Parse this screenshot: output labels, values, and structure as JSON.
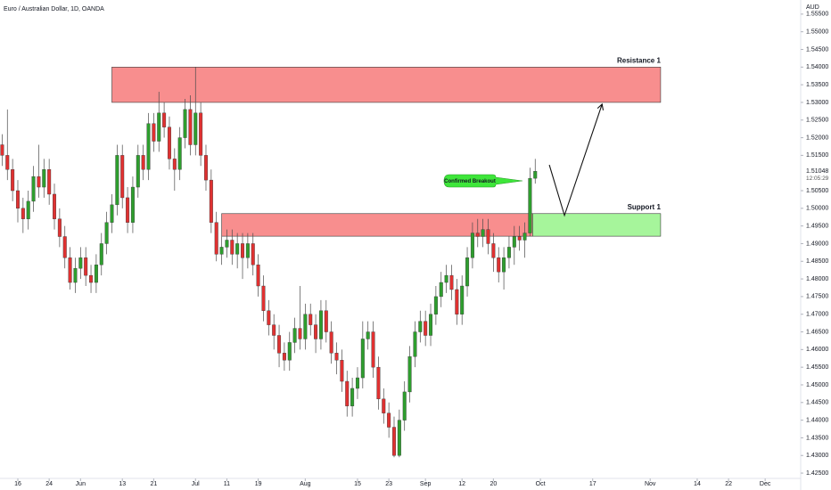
{
  "chart_data": {
    "type": "candlestick",
    "title": "Euro / Australian Dollar, 1D, OANDA",
    "currency": "AUD",
    "up_color": "#2e9e2e",
    "down_color": "#e03131",
    "xlim": [
      -0.41,
      152.8
    ],
    "ylim": [
      1.4235,
      1.559
    ],
    "yticks": [
      {
        "value": 1.425,
        "label": "1.42500"
      },
      {
        "value": 1.43,
        "label": "1.43000"
      },
      {
        "value": 1.435,
        "label": "1.43500"
      },
      {
        "value": 1.44,
        "label": "1.44000"
      },
      {
        "value": 1.445,
        "label": "1.44500"
      },
      {
        "value": 1.45,
        "label": "1.45000"
      },
      {
        "value": 1.455,
        "label": "1.45500"
      },
      {
        "value": 1.46,
        "label": "1.46000"
      },
      {
        "value": 1.465,
        "label": "1.46500"
      },
      {
        "value": 1.47,
        "label": "1.47000"
      },
      {
        "value": 1.475,
        "label": "1.47500"
      },
      {
        "value": 1.48,
        "label": "1.48000"
      },
      {
        "value": 1.485,
        "label": "1.48500"
      },
      {
        "value": 1.49,
        "label": "1.49000"
      },
      {
        "value": 1.495,
        "label": "1.49500"
      },
      {
        "value": 1.5,
        "label": "1.50000"
      },
      {
        "value": 1.505,
        "label": "1.50500"
      },
      {
        "value": 1.515,
        "label": "1.51500"
      },
      {
        "value": 1.52,
        "label": "1.52000"
      },
      {
        "value": 1.525,
        "label": "1.52500"
      },
      {
        "value": 1.53,
        "label": "1.53000"
      },
      {
        "value": 1.535,
        "label": "1.53500"
      },
      {
        "value": 1.54,
        "label": "1.54000"
      },
      {
        "value": 1.545,
        "label": "1.54500"
      },
      {
        "value": 1.55,
        "label": "1.55000"
      },
      {
        "value": 1.555,
        "label": "1.55500"
      }
    ],
    "xticks": [
      {
        "value": 3,
        "label": "16"
      },
      {
        "value": 9,
        "label": "24"
      },
      {
        "value": 15,
        "label": "Jun"
      },
      {
        "value": 23,
        "label": "13"
      },
      {
        "value": 29,
        "label": "21"
      },
      {
        "value": 37,
        "label": "Jul"
      },
      {
        "value": 43,
        "label": "11"
      },
      {
        "value": 49,
        "label": "19"
      },
      {
        "value": 58,
        "label": "Aug"
      },
      {
        "value": 68,
        "label": "15"
      },
      {
        "value": 74,
        "label": "23"
      },
      {
        "value": 81,
        "label": "Sep"
      },
      {
        "value": 88,
        "label": "12"
      },
      {
        "value": 94,
        "label": "20"
      },
      {
        "value": 103,
        "label": "Oct"
      },
      {
        "value": 113,
        "label": "17"
      },
      {
        "value": 124,
        "label": "Nov"
      },
      {
        "value": 133,
        "label": "14"
      },
      {
        "value": 139,
        "label": "22"
      },
      {
        "value": 146,
        "label": "Dec"
      }
    ],
    "candles": [
      [
        1.518,
        1.521,
        1.512,
        1.515
      ],
      [
        1.515,
        1.528,
        1.508,
        1.511
      ],
      [
        1.511,
        1.514,
        1.502,
        1.505
      ],
      [
        1.505,
        1.508,
        1.496,
        1.5
      ],
      [
        1.5,
        1.503,
        1.493,
        1.497
      ],
      [
        1.497,
        1.505,
        1.494,
        1.502
      ],
      [
        1.502,
        1.512,
        1.499,
        1.509
      ],
      [
        1.509,
        1.518,
        1.503,
        1.506
      ],
      [
        1.506,
        1.514,
        1.503,
        1.511
      ],
      [
        1.511,
        1.514,
        1.501,
        1.504
      ],
      [
        1.504,
        1.507,
        1.494,
        1.497
      ],
      [
        1.497,
        1.5,
        1.489,
        1.492
      ],
      [
        1.492,
        1.495,
        1.483,
        1.486
      ],
      [
        1.486,
        1.489,
        1.477,
        1.479
      ],
      [
        1.479,
        1.486,
        1.476,
        1.483
      ],
      [
        1.483,
        1.489,
        1.48,
        1.486
      ],
      [
        1.486,
        1.489,
        1.478,
        1.481
      ],
      [
        1.481,
        1.484,
        1.476,
        1.479
      ],
      [
        1.479,
        1.487,
        1.476,
        1.484
      ],
      [
        1.484,
        1.493,
        1.481,
        1.49
      ],
      [
        1.49,
        1.499,
        1.487,
        1.496
      ],
      [
        1.496,
        1.504,
        1.493,
        1.501
      ],
      [
        1.501,
        1.518,
        1.498,
        1.515
      ],
      [
        1.515,
        1.518,
        1.5,
        1.503
      ],
      [
        1.503,
        1.506,
        1.493,
        1.496
      ],
      [
        1.496,
        1.509,
        1.493,
        1.506
      ],
      [
        1.506,
        1.518,
        1.503,
        1.515
      ],
      [
        1.515,
        1.518,
        1.508,
        1.511
      ],
      [
        1.511,
        1.527,
        1.508,
        1.524
      ],
      [
        1.524,
        1.527,
        1.516,
        1.519
      ],
      [
        1.519,
        1.533,
        1.516,
        1.527
      ],
      [
        1.527,
        1.53,
        1.52,
        1.523
      ],
      [
        1.523,
        1.526,
        1.511,
        1.514
      ],
      [
        1.514,
        1.517,
        1.505,
        1.511
      ],
      [
        1.511,
        1.523,
        1.508,
        1.52
      ],
      [
        1.52,
        1.531,
        1.517,
        1.528
      ],
      [
        1.528,
        1.532,
        1.515,
        1.518
      ],
      [
        1.518,
        1.54,
        1.515,
        1.527
      ],
      [
        1.527,
        1.53,
        1.512,
        1.515
      ],
      [
        1.515,
        1.518,
        1.505,
        1.508
      ],
      [
        1.508,
        1.511,
        1.493,
        1.496
      ],
      [
        1.496,
        1.499,
        1.485,
        1.487
      ],
      [
        1.487,
        1.492,
        1.484,
        1.489
      ],
      [
        1.489,
        1.494,
        1.486,
        1.491
      ],
      [
        1.491,
        1.494,
        1.484,
        1.487
      ],
      [
        1.487,
        1.493,
        1.483,
        1.49
      ],
      [
        1.49,
        1.493,
        1.48,
        1.486
      ],
      [
        1.486,
        1.493,
        1.483,
        1.49
      ],
      [
        1.49,
        1.493,
        1.481,
        1.484
      ],
      [
        1.484,
        1.487,
        1.475,
        1.478
      ],
      [
        1.478,
        1.481,
        1.468,
        1.471
      ],
      [
        1.471,
        1.474,
        1.464,
        1.467
      ],
      [
        1.467,
        1.47,
        1.46,
        1.464
      ],
      [
        1.464,
        1.467,
        1.455,
        1.459
      ],
      [
        1.459,
        1.462,
        1.454,
        1.457
      ],
      [
        1.457,
        1.465,
        1.454,
        1.462
      ],
      [
        1.462,
        1.469,
        1.459,
        1.466
      ],
      [
        1.466,
        1.478,
        1.46,
        1.463
      ],
      [
        1.463,
        1.473,
        1.46,
        1.47
      ],
      [
        1.47,
        1.473,
        1.464,
        1.467
      ],
      [
        1.467,
        1.47,
        1.459,
        1.463
      ],
      [
        1.463,
        1.474,
        1.46,
        1.471
      ],
      [
        1.471,
        1.474,
        1.462,
        1.465
      ],
      [
        1.465,
        1.468,
        1.456,
        1.459
      ],
      [
        1.459,
        1.462,
        1.453,
        1.457
      ],
      [
        1.457,
        1.46,
        1.448,
        1.451
      ],
      [
        1.451,
        1.454,
        1.441,
        1.444
      ],
      [
        1.444,
        1.452,
        1.441,
        1.449
      ],
      [
        1.449,
        1.455,
        1.446,
        1.452
      ],
      [
        1.452,
        1.468,
        1.449,
        1.463
      ],
      [
        1.463,
        1.468,
        1.46,
        1.465
      ],
      [
        1.465,
        1.468,
        1.452,
        1.455
      ],
      [
        1.455,
        1.458,
        1.443,
        1.446
      ],
      [
        1.446,
        1.449,
        1.439,
        1.442
      ],
      [
        1.442,
        1.445,
        1.435,
        1.438
      ],
      [
        1.438,
        1.441,
        1.4295,
        1.43
      ],
      [
        1.43,
        1.443,
        1.4295,
        1.44
      ],
      [
        1.44,
        1.451,
        1.437,
        1.448
      ],
      [
        1.448,
        1.461,
        1.445,
        1.458
      ],
      [
        1.458,
        1.468,
        1.455,
        1.465
      ],
      [
        1.465,
        1.471,
        1.462,
        1.468
      ],
      [
        1.468,
        1.471,
        1.461,
        1.464
      ],
      [
        1.464,
        1.473,
        1.461,
        1.47
      ],
      [
        1.47,
        1.478,
        1.467,
        1.475
      ],
      [
        1.475,
        1.482,
        1.472,
        1.479
      ],
      [
        1.479,
        1.484,
        1.476,
        1.481
      ],
      [
        1.481,
        1.484,
        1.474,
        1.477
      ],
      [
        1.477,
        1.48,
        1.467,
        1.47
      ],
      [
        1.47,
        1.481,
        1.467,
        1.478
      ],
      [
        1.478,
        1.489,
        1.475,
        1.486
      ],
      [
        1.486,
        1.496,
        1.483,
        1.493
      ],
      [
        1.493,
        1.497,
        1.489,
        1.492
      ],
      [
        1.492,
        1.497,
        1.489,
        1.494
      ],
      [
        1.494,
        1.497,
        1.487,
        1.49
      ],
      [
        1.49,
        1.493,
        1.482,
        1.486
      ],
      [
        1.486,
        1.489,
        1.479,
        1.482
      ],
      [
        1.482,
        1.489,
        1.477,
        1.486
      ],
      [
        1.486,
        1.492,
        1.483,
        1.489
      ],
      [
        1.489,
        1.495,
        1.484,
        1.492
      ],
      [
        1.492,
        1.495,
        1.488,
        1.491
      ],
      [
        1.491,
        1.496,
        1.486,
        1.493
      ],
      [
        1.493,
        1.5115,
        1.492,
        1.5085
      ],
      [
        1.5085,
        1.514,
        1.507,
        1.5105
      ]
    ],
    "zones": [
      {
        "label": "Resistance 1",
        "top": 1.54,
        "bottom": 1.53,
        "start": 21,
        "end": 126,
        "color": "#f88e8e"
      },
      {
        "top": 1.4985,
        "bottom": 1.4921,
        "start": 42,
        "end": 101.5,
        "color": "#f88e8e"
      },
      {
        "label": "Support 1",
        "top": 1.4985,
        "bottom": 1.4921,
        "start": 101.5,
        "end": 126,
        "color": "#a6f59b"
      }
    ],
    "projection": {
      "x": [
        104.7,
        107.6,
        114.8
      ],
      "values": [
        1.5123,
        1.498,
        1.5295
      ]
    },
    "callout": "Confirmed Breakout",
    "last_price": 1.51048,
    "countdown": "12:05:29"
  }
}
